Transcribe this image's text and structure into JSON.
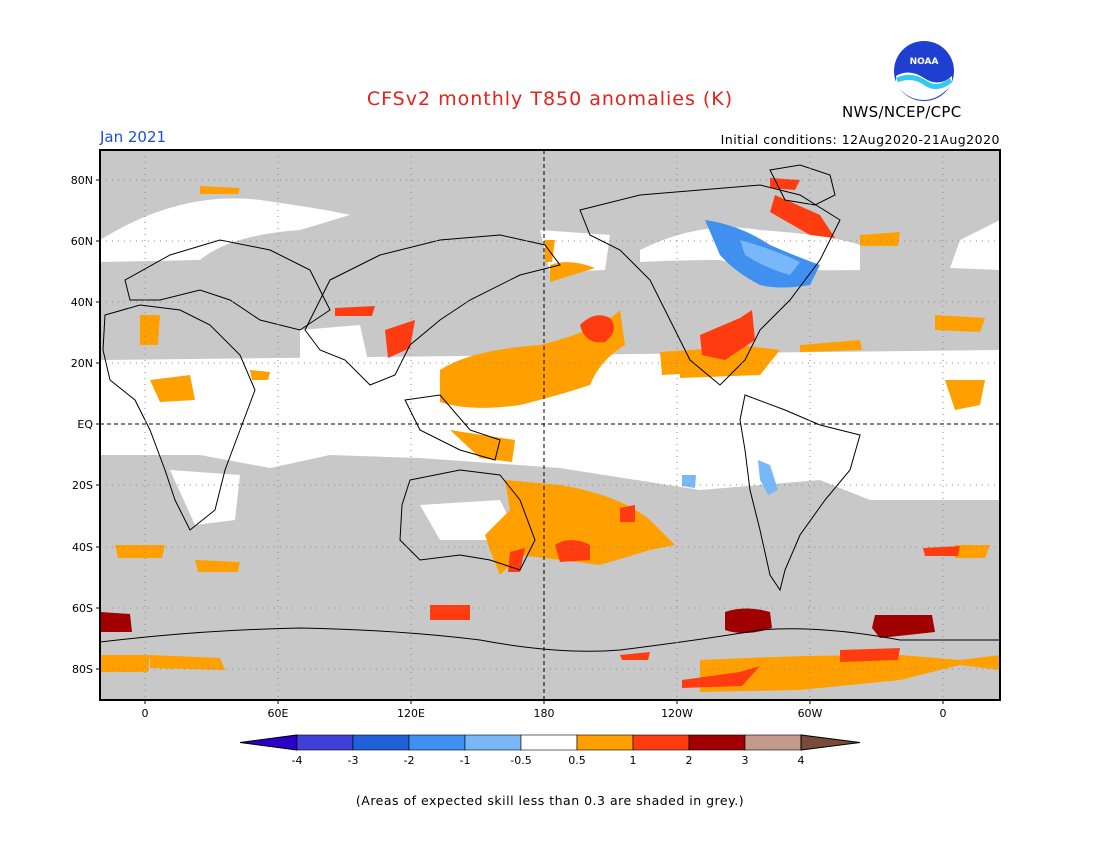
{
  "title": "CFSv2 monthly T850 anomalies (K)",
  "period": "Jan 2021",
  "initial_conditions": "Initial conditions: 12Aug2020-21Aug2020",
  "agency": "NWS/NCEP/CPC",
  "logo_text": "NOAA",
  "footnote": "(Areas of expected skill less than 0.3 are shaded in grey.)",
  "map": {
    "lat_labels": [
      "80N",
      "60N",
      "40N",
      "20N",
      "EQ",
      "20S",
      "40S",
      "60S",
      "80S"
    ],
    "lon_labels": [
      "0",
      "60E",
      "120E",
      "180",
      "120W",
      "60W",
      "0"
    ],
    "grey_color": "#c8c8c8"
  },
  "legend": {
    "labels": [
      "-4",
      "-3",
      "-2",
      "-1",
      "-0.5",
      "0.5",
      "1",
      "2",
      "3",
      "4"
    ],
    "colors": [
      "#2a00c8",
      "#4040d8",
      "#2060d8",
      "#4090f0",
      "#78b8f8",
      "#ffffff",
      "#ff9f00",
      "#ff3c10",
      "#a00000",
      "#c49a8a",
      "#7a4a3a"
    ]
  }
}
